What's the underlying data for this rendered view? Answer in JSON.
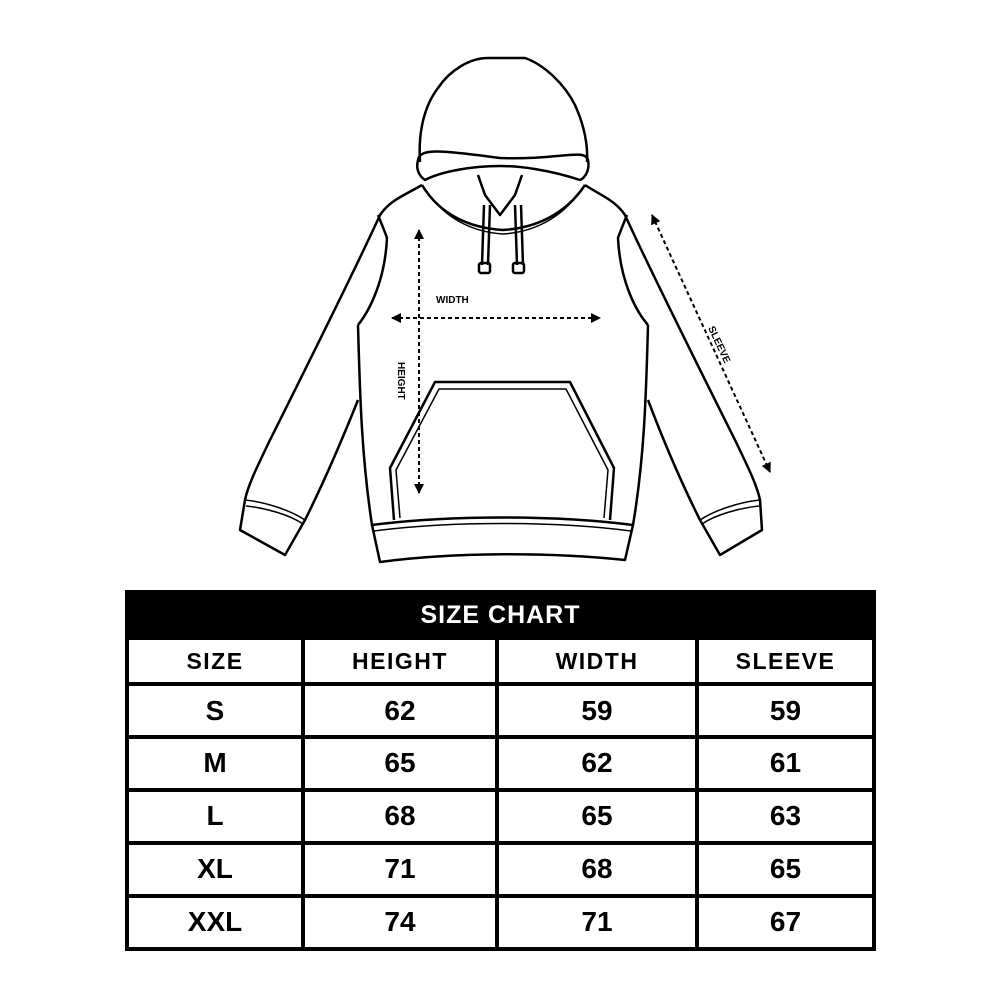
{
  "diagram": {
    "labels": {
      "width": "WIDTH",
      "height": "HEIGHT",
      "sleeve": "SLEEVE"
    }
  },
  "size_chart": {
    "title": "SIZE CHART",
    "columns": [
      "SIZE",
      "HEIGHT",
      "WIDTH",
      "SLEEVE"
    ],
    "rows": [
      [
        "S",
        "62",
        "59",
        "59"
      ],
      [
        "M",
        "65",
        "62",
        "61"
      ],
      [
        "L",
        "68",
        "65",
        "63"
      ],
      [
        "XL",
        "71",
        "68",
        "65"
      ],
      [
        "XXL",
        "74",
        "71",
        "67"
      ]
    ]
  }
}
